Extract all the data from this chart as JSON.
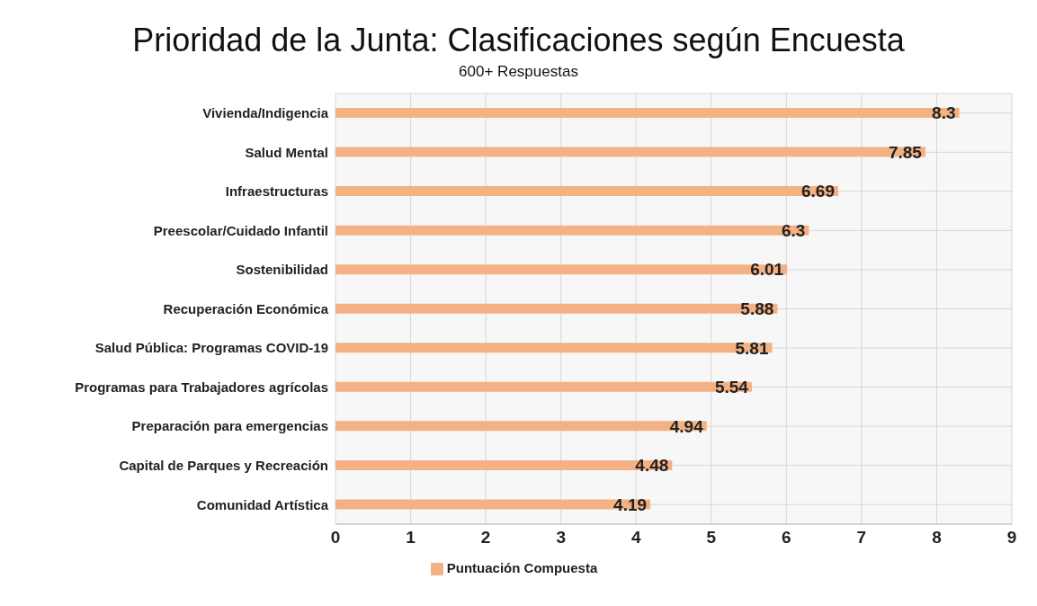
{
  "chart_data": {
    "type": "bar",
    "orientation": "horizontal",
    "title": "Prioridad de la Junta: Clasificaciones según Encuesta",
    "subtitle": "600+ Respuestas",
    "categories": [
      "Vivienda/Indigencia",
      "Salud Mental",
      "Infraestructuras",
      "Preescolar/Cuidado Infantil",
      "Sostenibilidad",
      "Recuperación Económica",
      "Salud Pública: Programas COVID-19",
      "Programas para Trabajadores agrícolas",
      "Preparación para emergencias",
      "Capital de Parques y Recreación",
      "Comunidad Artística"
    ],
    "series": [
      {
        "name": "Puntuación Compuesta",
        "color": "#f4b183",
        "values": [
          8.3,
          7.85,
          6.69,
          6.3,
          6.01,
          5.88,
          5.81,
          5.54,
          4.94,
          4.48,
          4.19
        ]
      }
    ],
    "xlim": [
      0,
      9
    ],
    "xticks": [
      0,
      1,
      2,
      3,
      4,
      5,
      6,
      7,
      8,
      9
    ],
    "grid": true,
    "legend": "bottom",
    "data_labels": true
  }
}
